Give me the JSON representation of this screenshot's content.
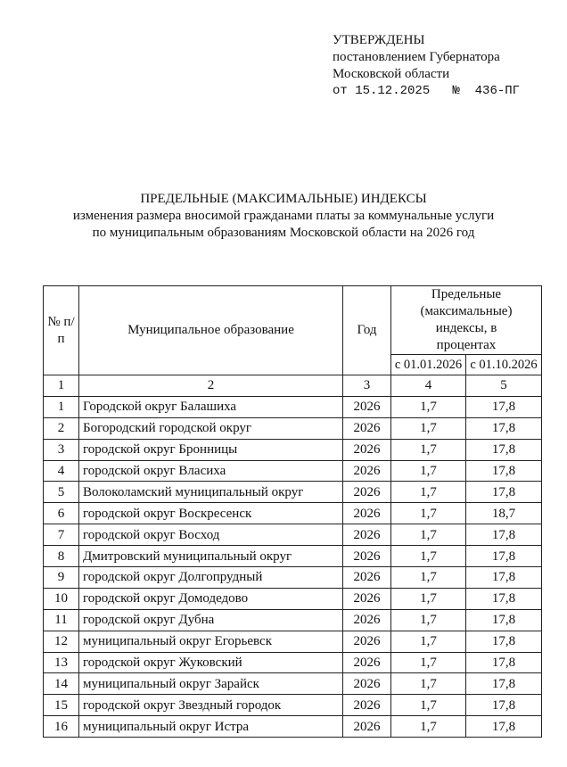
{
  "approval": {
    "line1": "УТВЕРЖДЕНЫ",
    "line2": "постановлением Губернатора",
    "line3": "Московской области",
    "date": "от 15.12.2025",
    "number": "№  436-ПГ"
  },
  "title": {
    "line1": "ПРЕДЕЛЬНЫЕ (МАКСИМАЛЬНЫЕ) ИНДЕКСЫ",
    "line2": "изменения размера вносимой гражданами платы за коммунальные услуги",
    "line3": "по муниципальным образованиям Московской области на 2026 год"
  },
  "table": {
    "headers": {
      "num": "№ п/п",
      "municipality": "Муниципальное образование",
      "year": "Год",
      "indices": "Предельные (максимальные) индексы, в процентах",
      "from1": "с 01.01.2026",
      "from2": "с 01.10.2026"
    },
    "col_numbers": [
      "1",
      "2",
      "3",
      "4",
      "5"
    ],
    "rows": [
      [
        "1",
        "Городской округ Балашиха",
        "2026",
        "1,7",
        "17,8"
      ],
      [
        "2",
        "Богородский городской округ",
        "2026",
        "1,7",
        "17,8"
      ],
      [
        "3",
        "городской округ Бронницы",
        "2026",
        "1,7",
        "17,8"
      ],
      [
        "4",
        "городской округ Власиха",
        "2026",
        "1,7",
        "17,8"
      ],
      [
        "5",
        "Волоколамский муниципальный округ",
        "2026",
        "1,7",
        "17,8"
      ],
      [
        "6",
        "городской округ Воскресенск",
        "2026",
        "1,7",
        "18,7"
      ],
      [
        "7",
        "городской округ Восход",
        "2026",
        "1,7",
        "17,8"
      ],
      [
        "8",
        "Дмитровский муниципальный округ",
        "2026",
        "1,7",
        "17,8"
      ],
      [
        "9",
        "городской округ Долгопрудный",
        "2026",
        "1,7",
        "17,8"
      ],
      [
        "10",
        "городской округ Домодедово",
        "2026",
        "1,7",
        "17,8"
      ],
      [
        "11",
        "городской округ Дубна",
        "2026",
        "1,7",
        "17,8"
      ],
      [
        "12",
        "муниципальный округ Егорьевск",
        "2026",
        "1,7",
        "17,8"
      ],
      [
        "13",
        "городской округ Жуковский",
        "2026",
        "1,7",
        "17,8"
      ],
      [
        "14",
        "муниципальный округ Зарайск",
        "2026",
        "1,7",
        "17,8"
      ],
      [
        "15",
        "городской округ Звездный городок",
        "2026",
        "1,7",
        "17,8"
      ],
      [
        "16",
        "муниципальный округ Истра",
        "2026",
        "1,7",
        "17,8"
      ]
    ]
  }
}
